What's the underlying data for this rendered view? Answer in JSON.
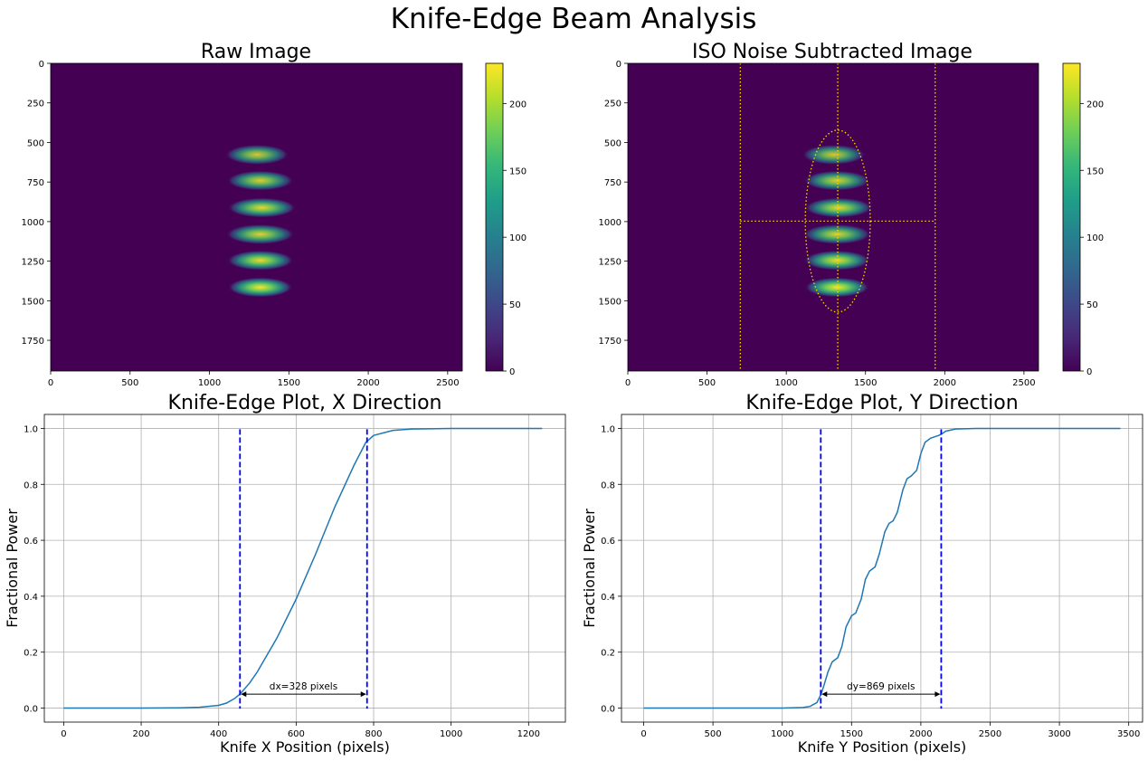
{
  "figure": {
    "suptitle": "Knife-Edge Beam Analysis"
  },
  "colors": {
    "viridis": [
      "#440154",
      "#482878",
      "#3e4989",
      "#31688e",
      "#26828e",
      "#1f9e89",
      "#35b779",
      "#6ece58",
      "#b5de2b",
      "#fde725"
    ],
    "curve": "#1f77b4",
    "cut_lines": "#0000ff",
    "overlay": "#ffd700",
    "grid": "#b0b0b0"
  },
  "chart_data": [
    {
      "id": "raw",
      "type": "heatmap",
      "title": "Raw Image",
      "xlim": [
        0,
        2592
      ],
      "ylim": [
        1944,
        0
      ],
      "xticks": [
        0,
        500,
        1000,
        1500,
        2000,
        2500
      ],
      "yticks": [
        0,
        250,
        500,
        750,
        1000,
        1250,
        1500,
        1750
      ],
      "colorbar": {
        "range": [
          0,
          230
        ],
        "ticks": [
          0,
          50,
          100,
          150,
          200
        ]
      },
      "blobs": [
        {
          "x": 1300,
          "y": 577,
          "rx": 200,
          "ry": 55,
          "peak": 150
        },
        {
          "x": 1320,
          "y": 741,
          "rx": 210,
          "ry": 55,
          "peak": 165
        },
        {
          "x": 1330,
          "y": 912,
          "rx": 215,
          "ry": 55,
          "peak": 190
        },
        {
          "x": 1320,
          "y": 1080,
          "rx": 215,
          "ry": 55,
          "peak": 175
        },
        {
          "x": 1320,
          "y": 1245,
          "rx": 210,
          "ry": 55,
          "peak": 200
        },
        {
          "x": 1320,
          "y": 1415,
          "rx": 205,
          "ry": 55,
          "peak": 225
        }
      ]
    },
    {
      "id": "iso",
      "type": "heatmap",
      "title": "ISO Noise Subtracted Image",
      "xlim": [
        0,
        2592
      ],
      "ylim": [
        1944,
        0
      ],
      "xticks": [
        0,
        500,
        1000,
        1500,
        2000,
        2500
      ],
      "yticks": [
        0,
        250,
        500,
        750,
        1000,
        1250,
        1500,
        1750
      ],
      "colorbar": {
        "range": [
          0,
          230
        ],
        "ticks": [
          0,
          50,
          100,
          150,
          200
        ]
      },
      "blobs": [
        {
          "x": 1300,
          "y": 577,
          "rx": 200,
          "ry": 55,
          "peak": 150
        },
        {
          "x": 1320,
          "y": 741,
          "rx": 210,
          "ry": 55,
          "peak": 165
        },
        {
          "x": 1330,
          "y": 912,
          "rx": 215,
          "ry": 55,
          "peak": 190
        },
        {
          "x": 1320,
          "y": 1080,
          "rx": 215,
          "ry": 55,
          "peak": 175
        },
        {
          "x": 1320,
          "y": 1245,
          "rx": 210,
          "ry": 55,
          "peak": 200
        },
        {
          "x": 1320,
          "y": 1415,
          "rx": 205,
          "ry": 55,
          "peak": 225
        }
      ],
      "overlay": {
        "ellipse": {
          "cx": 1325,
          "cy": 997,
          "rx": 205,
          "ry": 575
        },
        "vlines": [
          710,
          1325,
          1940
        ],
        "hline": {
          "y": 997,
          "x1": 710,
          "x2": 1940
        }
      }
    },
    {
      "id": "kx",
      "type": "line",
      "title": "Knife-Edge Plot, X Direction",
      "xlabel": "Knife X Position (pixels)",
      "ylabel": "Fractional Power",
      "xlim": [
        -50,
        1295
      ],
      "ylim": [
        -0.05,
        1.05
      ],
      "xticks": [
        0,
        200,
        400,
        600,
        800,
        1000,
        1200
      ],
      "yticks": [
        0.0,
        0.2,
        0.4,
        0.6,
        0.8,
        1.0
      ],
      "grid": true,
      "series": [
        {
          "x": [
            0,
            200,
            300,
            350,
            400,
            420,
            440,
            455,
            480,
            500,
            550,
            600,
            650,
            700,
            750,
            780,
            800,
            850,
            900,
            1000,
            1100,
            1235
          ],
          "y": [
            0,
            0,
            0.001,
            0.003,
            0.01,
            0.018,
            0.033,
            0.05,
            0.09,
            0.13,
            0.25,
            0.39,
            0.55,
            0.72,
            0.87,
            0.95,
            0.975,
            0.993,
            0.998,
            1.0,
            1.0,
            1.0
          ]
        }
      ],
      "cut_lines": [
        455,
        783
      ],
      "annotation": {
        "text": "dx=328 pixels",
        "x1": 455,
        "x2": 783,
        "y": 0.05
      }
    },
    {
      "id": "ky",
      "type": "line",
      "title": "Knife-Edge Plot, Y Direction",
      "xlabel": "Knife Y Position (pixels)",
      "ylabel": "Fractional Power",
      "xlim": [
        -160,
        3600
      ],
      "ylim": [
        -0.05,
        1.05
      ],
      "xticks": [
        0,
        500,
        1000,
        1500,
        2000,
        2500,
        3000,
        3500
      ],
      "yticks": [
        0.0,
        0.2,
        0.4,
        0.6,
        0.8,
        1.0
      ],
      "grid": true,
      "series": [
        {
          "x": [
            0,
            1000,
            1150,
            1200,
            1250,
            1280,
            1300,
            1330,
            1360,
            1400,
            1430,
            1460,
            1500,
            1530,
            1570,
            1600,
            1630,
            1670,
            1700,
            1740,
            1770,
            1800,
            1830,
            1870,
            1900,
            1930,
            1970,
            2000,
            2030,
            2070,
            2100,
            2130,
            2150,
            2180,
            2250,
            2400,
            3440
          ],
          "y": [
            0,
            0,
            0.002,
            0.006,
            0.02,
            0.05,
            0.08,
            0.13,
            0.165,
            0.18,
            0.22,
            0.29,
            0.33,
            0.34,
            0.39,
            0.46,
            0.49,
            0.505,
            0.55,
            0.63,
            0.66,
            0.67,
            0.7,
            0.78,
            0.82,
            0.83,
            0.85,
            0.91,
            0.95,
            0.965,
            0.97,
            0.975,
            0.98,
            0.99,
            0.998,
            1.0,
            1.0
          ]
        }
      ],
      "cut_lines": [
        1278,
        2147
      ],
      "annotation": {
        "text": "dy=869 pixels",
        "x1": 1278,
        "x2": 2147,
        "y": 0.05
      }
    }
  ]
}
